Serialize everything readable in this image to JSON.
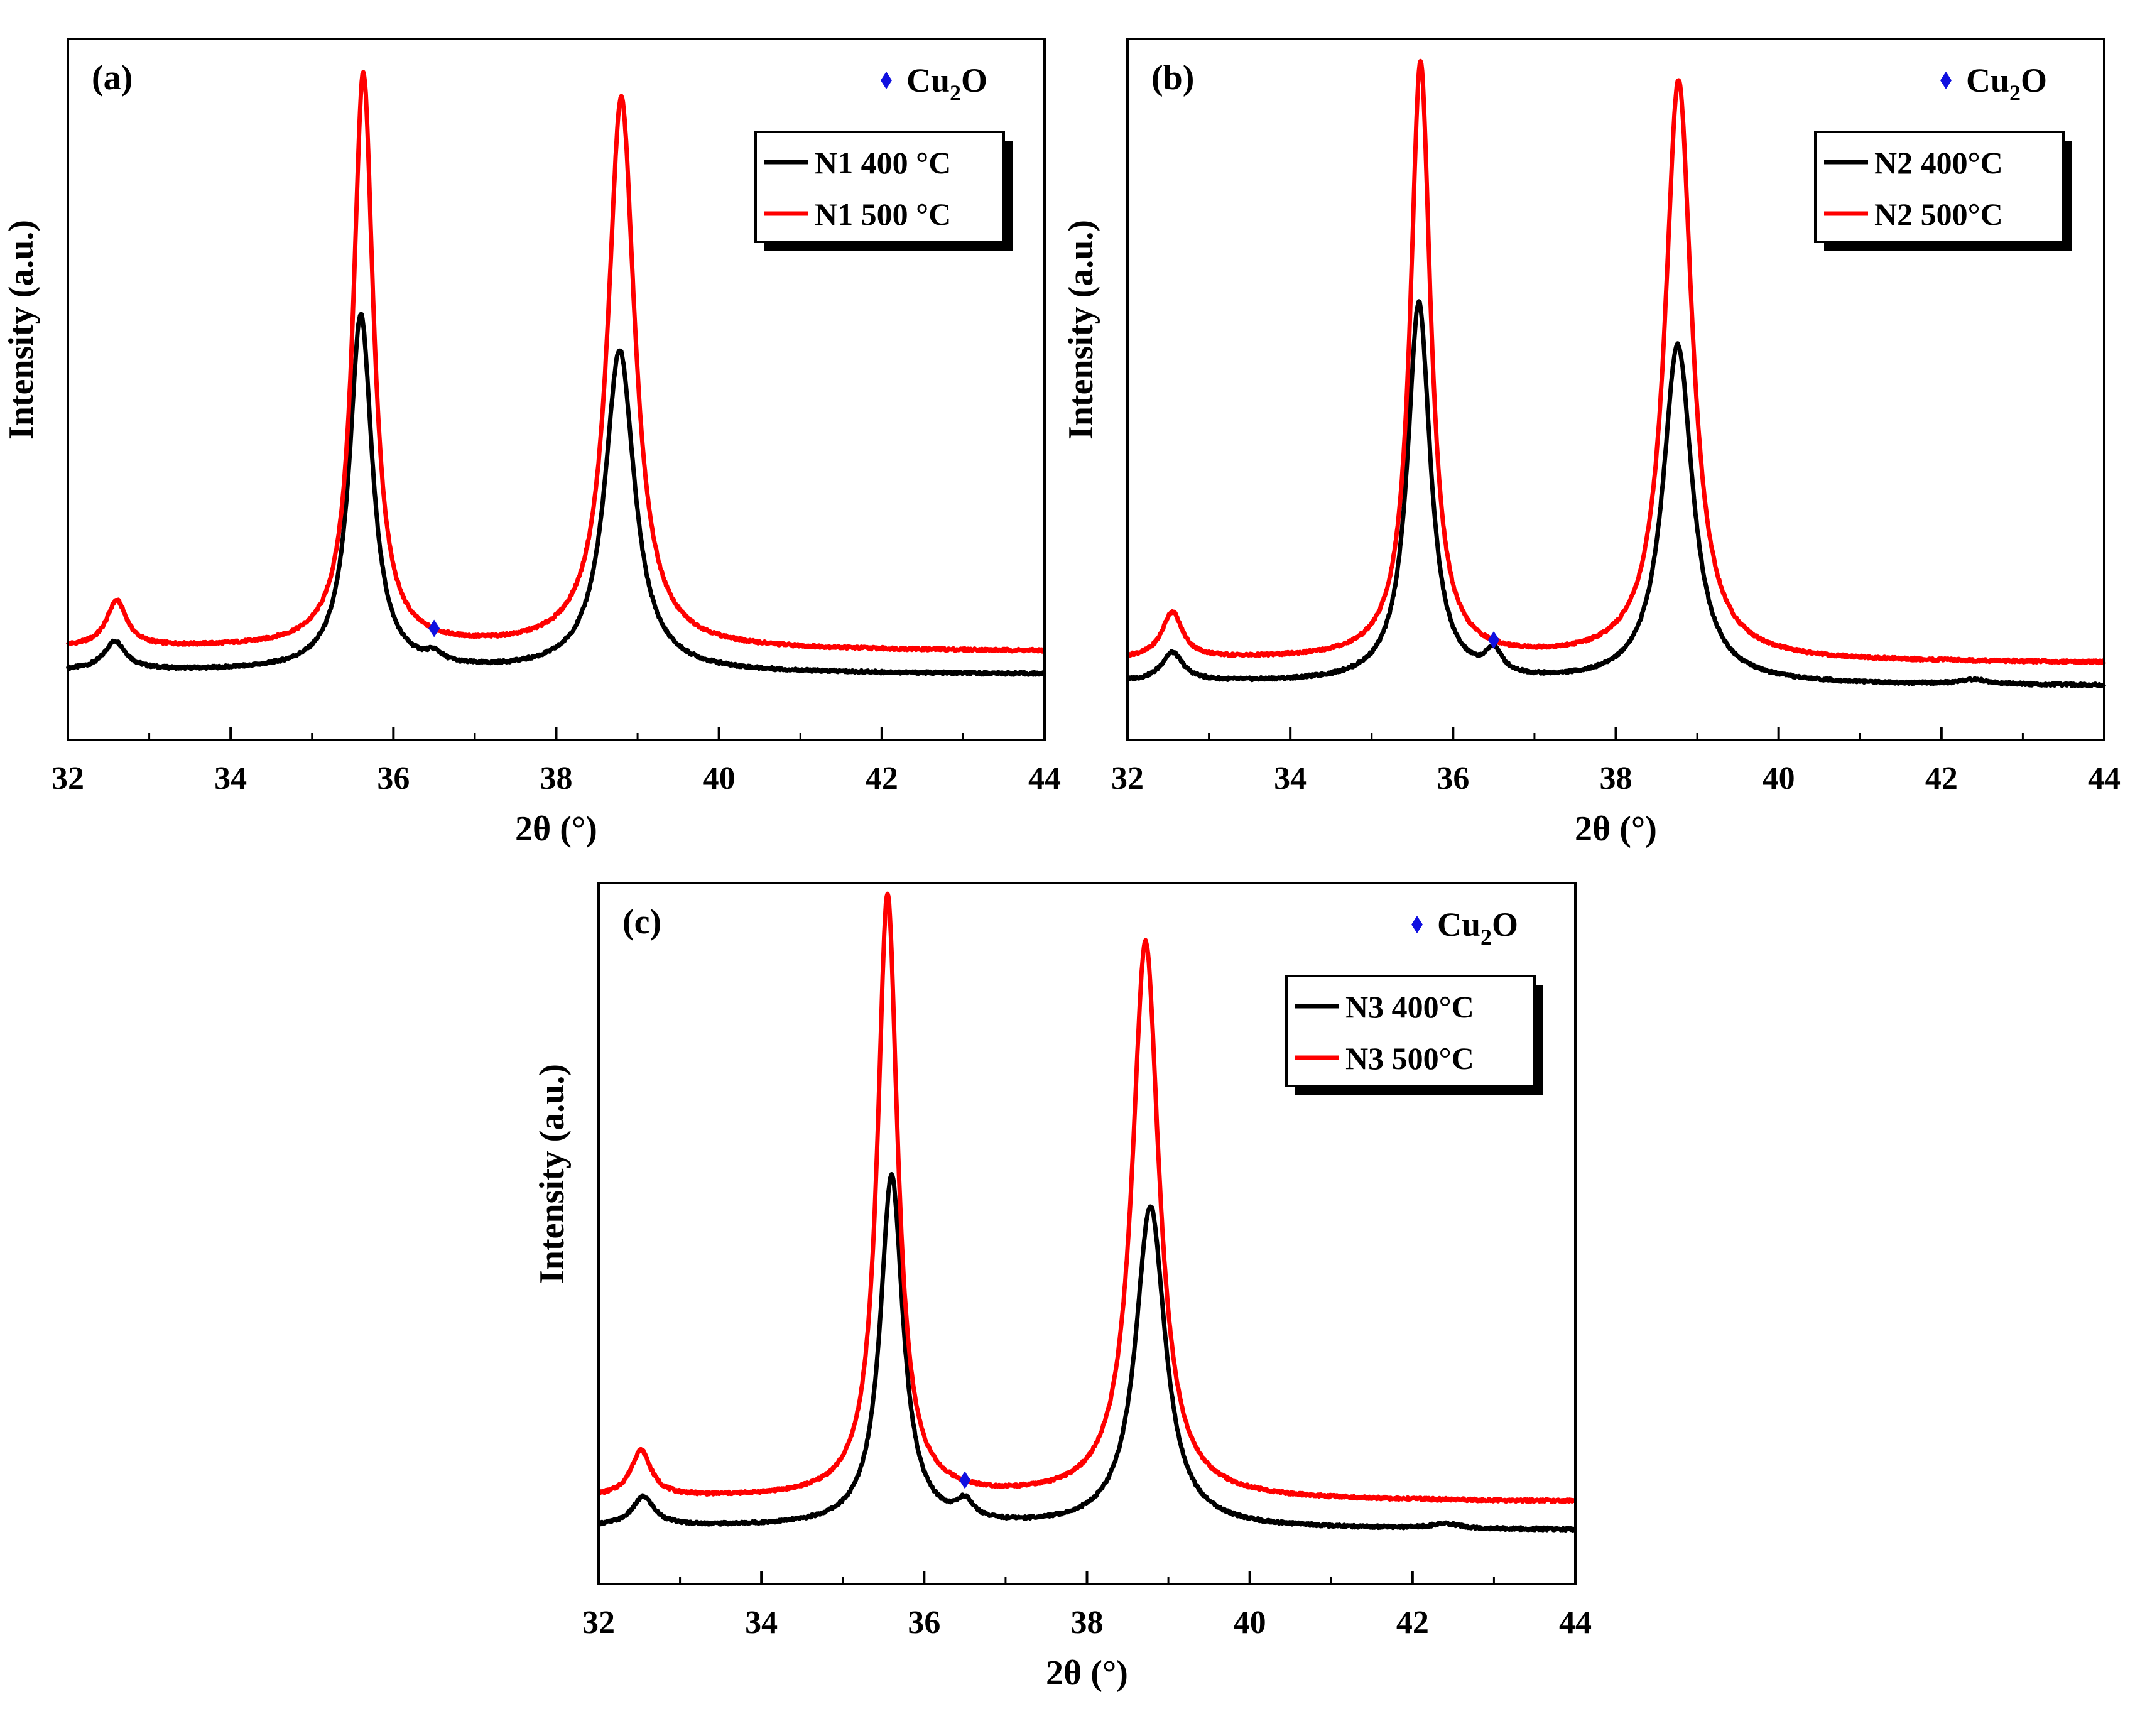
{
  "colors": {
    "series_400": "#000000",
    "series_500": "#ff0000",
    "cu2o_marker": "#1010e0",
    "axis": "#000000",
    "background": "#ffffff"
  },
  "chart_data": [
    {
      "type": "line",
      "panel_label": "(a)",
      "xlabel": "2θ (°)",
      "ylabel": "Intensity (a.u.)",
      "xlim": [
        32,
        44
      ],
      "ylim": [
        0,
        110
      ],
      "xticks": [
        "32",
        "34",
        "36",
        "38",
        "40",
        "42",
        "44"
      ],
      "yticks_shown": false,
      "legend": {
        "placement": "top-right",
        "entries": [
          "N1 400 °C",
          "N1 500 °C"
        ]
      },
      "annotation": {
        "marker": "diamond",
        "label_main": "Cu",
        "label_sub": "2",
        "label_tail": "O",
        "x": 36.5
      },
      "series": [
        {
          "name": "N1 400 °C",
          "color": "#000000",
          "baseline": 6,
          "slope": -0.05,
          "peaks": [
            {
              "x": 32.58,
              "h": 5,
              "w": 0.16
            },
            {
              "x": 35.6,
              "h": 62,
              "w": 0.17
            },
            {
              "x": 36.5,
              "h": 1.5,
              "w": 0.12
            },
            {
              "x": 38.78,
              "h": 56,
              "w": 0.22
            }
          ]
        },
        {
          "name": "N1 500 °C",
          "color": "#ff0000",
          "baseline": 10,
          "slope": -0.05,
          "peaks": [
            {
              "x": 32.6,
              "h": 8,
              "w": 0.15
            },
            {
              "x": 35.63,
              "h": 100,
              "w": 0.15
            },
            {
              "x": 38.8,
              "h": 96,
              "w": 0.2
            }
          ]
        }
      ]
    },
    {
      "type": "line",
      "panel_label": "(b)",
      "xlabel": "2θ (°)",
      "ylabel": "Intensity (a.u.)",
      "xlim": [
        32,
        44
      ],
      "ylim": [
        0,
        110
      ],
      "xticks": [
        "32",
        "34",
        "36",
        "38",
        "40",
        "42",
        "44"
      ],
      "yticks_shown": false,
      "legend": {
        "placement": "top-right",
        "entries": [
          "N2 400°C",
          "N2 500°C"
        ]
      },
      "annotation": {
        "marker": "diamond",
        "label_main": "Cu",
        "label_sub": "2",
        "label_tail": "O",
        "x": 36.5
      },
      "series": [
        {
          "name": "N2 400°C",
          "color": "#000000",
          "baseline": 4,
          "slope": -0.05,
          "peaks": [
            {
              "x": 32.55,
              "h": 5,
              "w": 0.16
            },
            {
              "x": 35.58,
              "h": 66,
              "w": 0.17
            },
            {
              "x": 36.5,
              "h": 4,
              "w": 0.12
            },
            {
              "x": 38.76,
              "h": 59,
              "w": 0.22
            },
            {
              "x": 42.4,
              "h": 0.8,
              "w": 0.2
            }
          ]
        },
        {
          "name": "N2 500°C",
          "color": "#ff0000",
          "baseline": 8,
          "slope": -0.05,
          "peaks": [
            {
              "x": 32.55,
              "h": 8,
              "w": 0.15
            },
            {
              "x": 35.6,
              "h": 104,
              "w": 0.15
            },
            {
              "x": 38.77,
              "h": 101,
              "w": 0.2
            }
          ]
        }
      ]
    },
    {
      "type": "line",
      "panel_label": "(c)",
      "xlabel": "2θ (°)",
      "ylabel": "Intensity (a.u.)",
      "xlim": [
        32,
        44
      ],
      "ylim": [
        0,
        110
      ],
      "xticks": [
        "32",
        "34",
        "36",
        "38",
        "40",
        "42",
        "44"
      ],
      "yticks_shown": false,
      "legend": {
        "placement": "top-right",
        "entries": [
          "N3 400°C",
          "N3 500°C"
        ]
      },
      "annotation": {
        "marker": "diamond",
        "label_main": "Cu",
        "label_sub": "2",
        "label_tail": "O",
        "x": 36.5
      },
      "series": [
        {
          "name": "N3 400°C",
          "color": "#000000",
          "baseline": 4,
          "slope": -0.05,
          "peaks": [
            {
              "x": 32.55,
              "h": 5,
              "w": 0.16
            },
            {
              "x": 35.6,
              "h": 61,
              "w": 0.17
            },
            {
              "x": 36.5,
              "h": 3,
              "w": 0.12
            },
            {
              "x": 38.78,
              "h": 56,
              "w": 0.22
            },
            {
              "x": 42.4,
              "h": 0.8,
              "w": 0.2
            }
          ]
        },
        {
          "name": "N3 500°C",
          "color": "#ff0000",
          "baseline": 9,
          "slope": -0.06,
          "peaks": [
            {
              "x": 32.52,
              "h": 8,
              "w": 0.15
            },
            {
              "x": 35.55,
              "h": 105,
              "w": 0.15
            },
            {
              "x": 38.72,
              "h": 97,
              "w": 0.2
            }
          ]
        }
      ]
    }
  ]
}
